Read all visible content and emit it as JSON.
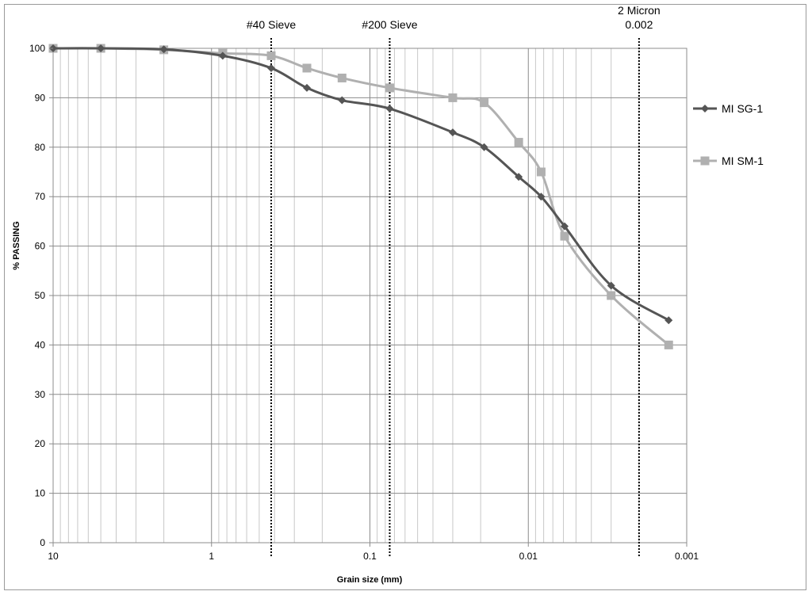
{
  "chart_data": {
    "type": "line",
    "xlabel": "Grain size (mm)",
    "ylabel": "% PASSING",
    "x_scale": "log",
    "x_reversed": true,
    "xlim": [
      10,
      0.001
    ],
    "ylim": [
      0,
      100
    ],
    "x_ticks": [
      10,
      1,
      0.1,
      0.01,
      0.001
    ],
    "x_tick_labels": [
      "10",
      "1",
      "0.1",
      "0.01",
      "0.001"
    ],
    "y_ticks": [
      0,
      10,
      20,
      30,
      40,
      50,
      60,
      70,
      80,
      90,
      100
    ],
    "grid": true,
    "legend_position": "right",
    "annotations": [
      {
        "lines": [
          "#40 Sieve"
        ],
        "x": 0.42
      },
      {
        "lines": [
          "#200 Sieve"
        ],
        "x": 0.075
      },
      {
        "lines": [
          "2 Micron",
          "0.002"
        ],
        "x": 0.002
      }
    ],
    "series": [
      {
        "name": "MI SG-1",
        "color": "#555555",
        "marker": "diamond",
        "x": [
          10,
          5,
          2,
          0.85,
          0.42,
          0.25,
          0.15,
          0.075,
          0.03,
          0.019,
          0.0115,
          0.0083,
          0.0059,
          0.003,
          0.0013
        ],
        "y": [
          100,
          100,
          99.8,
          98.5,
          96,
          92,
          89.5,
          87.8,
          83,
          80,
          74,
          70,
          64,
          52,
          45
        ]
      },
      {
        "name": "MI SM-1",
        "color": "#b0b0b0",
        "marker": "square",
        "x": [
          10,
          5,
          2,
          0.85,
          0.42,
          0.25,
          0.15,
          0.075,
          0.03,
          0.019,
          0.0115,
          0.0083,
          0.0059,
          0.003,
          0.0013
        ],
        "y": [
          100,
          100,
          99.7,
          99,
          98.5,
          96,
          94,
          92,
          90,
          89,
          81,
          75,
          62,
          50,
          40
        ]
      }
    ]
  }
}
